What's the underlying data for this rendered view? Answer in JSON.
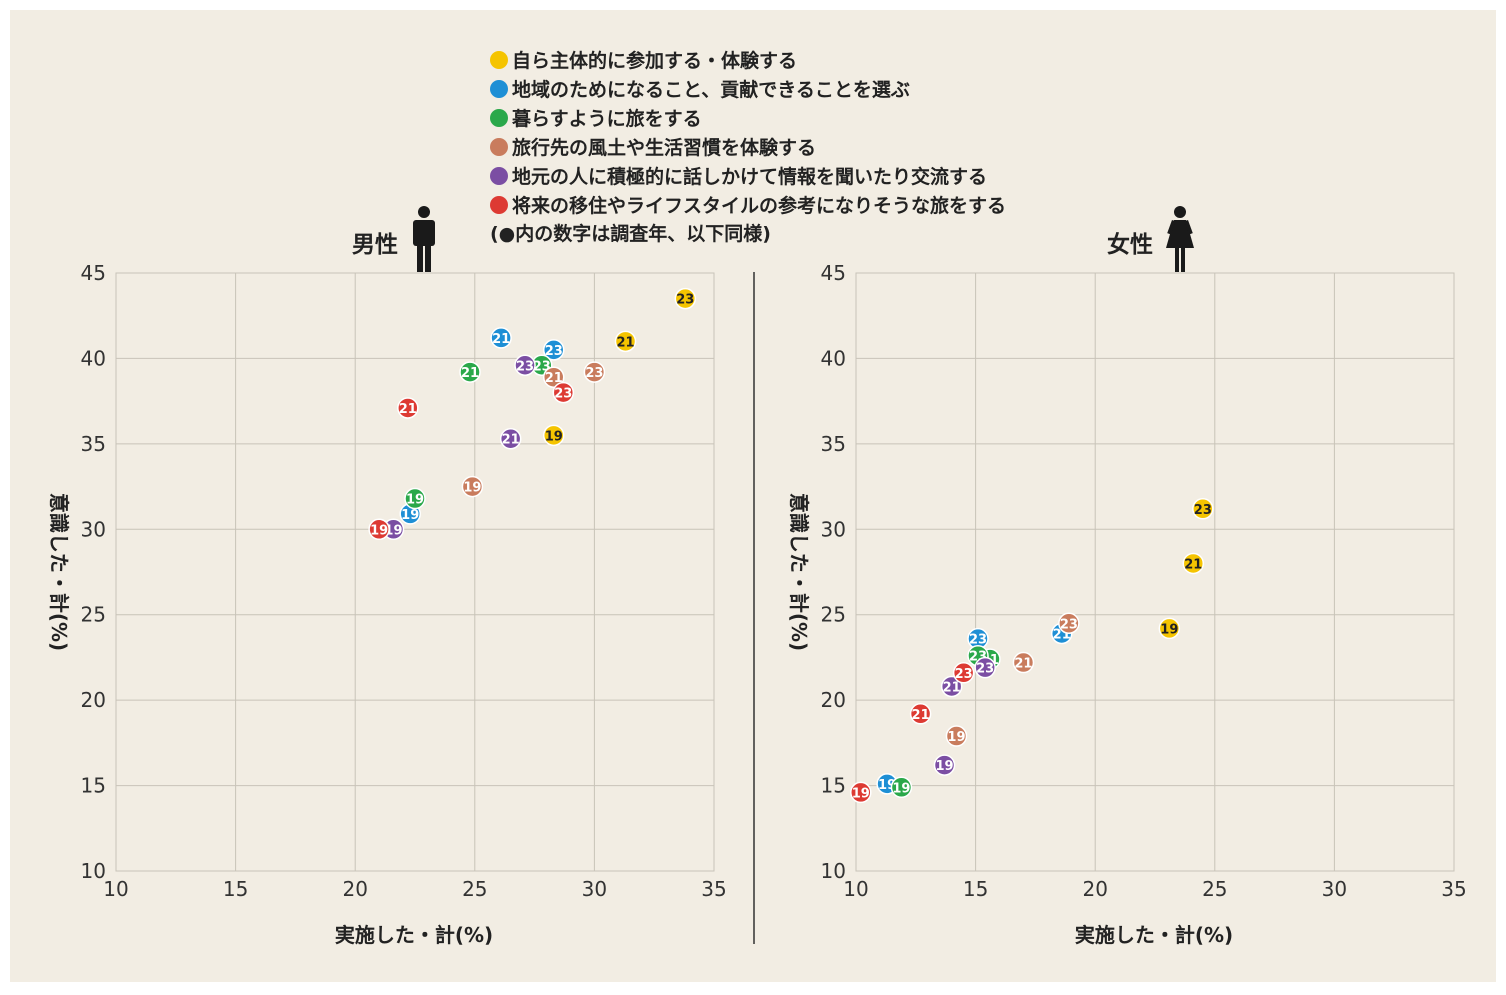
{
  "legend": {
    "items": [
      {
        "key": "s1",
        "label": "自ら主体的に参加する・体験する",
        "color": "#f5c400"
      },
      {
        "key": "s2",
        "label": "地域のためになること、貢献できることを選ぶ",
        "color": "#1e8fd5"
      },
      {
        "key": "s3",
        "label": "暮らすように旅をする",
        "color": "#2aa84a"
      },
      {
        "key": "s4",
        "label": "旅行先の風土や生活習慣を体験する",
        "color": "#c97c5d"
      },
      {
        "key": "s5",
        "label": "地元の人に積極的に話しかけて情報を聞いたり交流する",
        "color": "#7b4ea3"
      },
      {
        "key": "s6",
        "label": "将来の移住やライフスタイルの参考になりそうな旅をする",
        "color": "#dd3a33"
      }
    ],
    "note": "(●内の数字は調査年、以下同様)"
  },
  "chart_data": [
    {
      "type": "scatter",
      "title": "男性",
      "xlabel": "実施した・計(%)",
      "ylabel": "意識した・計(%)",
      "xlim": [
        10,
        35
      ],
      "ylim": [
        10,
        45
      ],
      "xticks": [
        "10",
        "15",
        "20",
        "25",
        "30",
        "35"
      ],
      "yticks": [
        "10",
        "15",
        "20",
        "25",
        "30",
        "35",
        "40",
        "45"
      ],
      "grid": true,
      "series": [
        {
          "name": "自ら主体的に参加する・体験する",
          "points": [
            {
              "x": 28.3,
              "y": 35.5,
              "label": "19"
            },
            {
              "x": 31.3,
              "y": 41.0,
              "label": "21"
            },
            {
              "x": 33.8,
              "y": 43.5,
              "label": "23"
            }
          ]
        },
        {
          "name": "地域のためになること、貢献できることを選ぶ",
          "points": [
            {
              "x": 22.3,
              "y": 30.9,
              "label": "19"
            },
            {
              "x": 26.1,
              "y": 41.2,
              "label": "21"
            },
            {
              "x": 28.3,
              "y": 40.5,
              "label": "23"
            }
          ]
        },
        {
          "name": "暮らすように旅をする",
          "points": [
            {
              "x": 22.5,
              "y": 31.8,
              "label": "19"
            },
            {
              "x": 24.8,
              "y": 39.2,
              "label": "21"
            },
            {
              "x": 27.8,
              "y": 39.6,
              "label": "23"
            }
          ]
        },
        {
          "name": "旅行先の風土や生活習慣を体験する",
          "points": [
            {
              "x": 24.9,
              "y": 32.5,
              "label": "19"
            },
            {
              "x": 28.3,
              "y": 38.9,
              "label": "21"
            },
            {
              "x": 30.0,
              "y": 39.2,
              "label": "23"
            }
          ]
        },
        {
          "name": "地元の人に積極的に話しかけて情報を聞いたり交流する",
          "points": [
            {
              "x": 21.6,
              "y": 30.0,
              "label": "19"
            },
            {
              "x": 26.5,
              "y": 35.3,
              "label": "21"
            },
            {
              "x": 27.1,
              "y": 39.6,
              "label": "23"
            }
          ]
        },
        {
          "name": "将来の移住やライフスタイルの参考になりそうな旅をする",
          "points": [
            {
              "x": 21.0,
              "y": 30.0,
              "label": "19"
            },
            {
              "x": 22.2,
              "y": 37.1,
              "label": "21"
            },
            {
              "x": 28.7,
              "y": 38.0,
              "label": "23"
            }
          ]
        }
      ]
    },
    {
      "type": "scatter",
      "title": "女性",
      "xlabel": "実施した・計(%)",
      "ylabel": "意識した・計(%)",
      "xlim": [
        10,
        35
      ],
      "ylim": [
        10,
        45
      ],
      "xticks": [
        "10",
        "15",
        "20",
        "25",
        "30",
        "35"
      ],
      "yticks": [
        "10",
        "15",
        "20",
        "25",
        "30",
        "35",
        "40",
        "45"
      ],
      "grid": true,
      "series": [
        {
          "name": "自ら主体的に参加する・体験する",
          "points": [
            {
              "x": 23.1,
              "y": 24.2,
              "label": "19"
            },
            {
              "x": 24.1,
              "y": 28.0,
              "label": "21"
            },
            {
              "x": 24.5,
              "y": 31.2,
              "label": "23"
            }
          ]
        },
        {
          "name": "地域のためになること、貢献できることを選ぶ",
          "points": [
            {
              "x": 11.3,
              "y": 15.1,
              "label": "19"
            },
            {
              "x": 18.6,
              "y": 23.9,
              "label": "21"
            },
            {
              "x": 15.1,
              "y": 23.6,
              "label": "23"
            }
          ]
        },
        {
          "name": "暮らすように旅をする",
          "points": [
            {
              "x": 11.9,
              "y": 14.9,
              "label": "19"
            },
            {
              "x": 15.6,
              "y": 22.4,
              "label": "21"
            },
            {
              "x": 15.1,
              "y": 22.6,
              "label": "23"
            }
          ]
        },
        {
          "name": "旅行先の風土や生活習慣を体験する",
          "points": [
            {
              "x": 14.2,
              "y": 17.9,
              "label": "19"
            },
            {
              "x": 17.0,
              "y": 22.2,
              "label": "21"
            },
            {
              "x": 18.9,
              "y": 24.5,
              "label": "23"
            }
          ]
        },
        {
          "name": "地元の人に積極的に話しかけて情報を聞いたり交流する",
          "points": [
            {
              "x": 13.7,
              "y": 16.2,
              "label": "19"
            },
            {
              "x": 14.0,
              "y": 20.8,
              "label": "21"
            },
            {
              "x": 15.4,
              "y": 21.9,
              "label": "23"
            }
          ]
        },
        {
          "name": "将来の移住やライフスタイルの参考になりそうな旅をする",
          "points": [
            {
              "x": 10.2,
              "y": 14.6,
              "label": "19"
            },
            {
              "x": 12.7,
              "y": 19.2,
              "label": "21"
            },
            {
              "x": 14.5,
              "y": 21.6,
              "label": "23"
            }
          ]
        }
      ]
    }
  ]
}
